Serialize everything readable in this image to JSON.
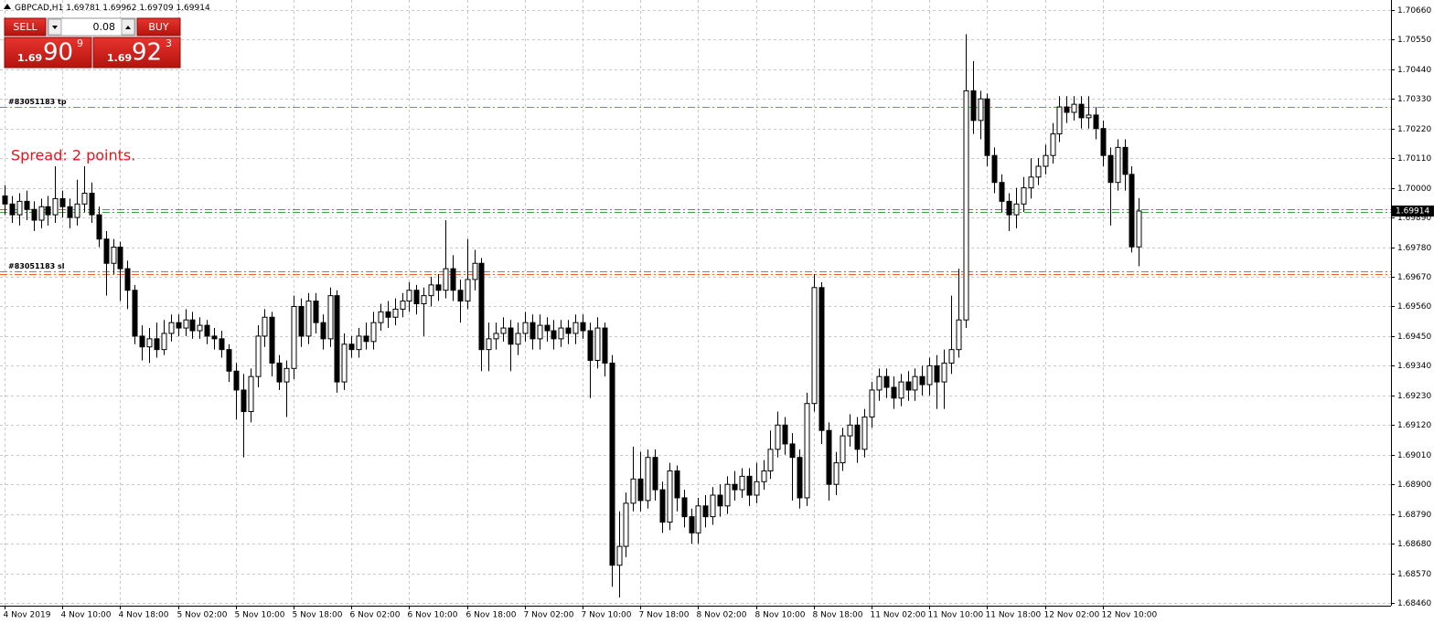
{
  "chart_data": {
    "type": "candlestick",
    "title": "GBPCAD,H1",
    "annotation": "Spread: 2 points.",
    "ylim": [
      1.6845,
      1.7069
    ],
    "yticks": [
      {
        "value": 1.7066,
        "label": "1.70660"
      },
      {
        "value": 1.7055,
        "label": "1.70550"
      },
      {
        "value": 1.7044,
        "label": "1.70440"
      },
      {
        "value": 1.7033,
        "label": "1.70330"
      },
      {
        "value": 1.7022,
        "label": "1.70220"
      },
      {
        "value": 1.7011,
        "label": "1.70110"
      },
      {
        "value": 1.7,
        "label": "1.70000"
      },
      {
        "value": 1.6989,
        "label": "1.69890"
      },
      {
        "value": 1.6978,
        "label": "1.69780"
      },
      {
        "value": 1.6967,
        "label": "1.69670"
      },
      {
        "value": 1.6956,
        "label": "1.69560"
      },
      {
        "value": 1.6945,
        "label": "1.69450"
      },
      {
        "value": 1.6934,
        "label": "1.69340"
      },
      {
        "value": 1.6923,
        "label": "1.69230"
      },
      {
        "value": 1.6912,
        "label": "1.69120"
      },
      {
        "value": 1.6901,
        "label": "1.69010"
      },
      {
        "value": 1.689,
        "label": "1.68900"
      },
      {
        "value": 1.6879,
        "label": "1.68790"
      },
      {
        "value": 1.6868,
        "label": "1.68680"
      },
      {
        "value": 1.6857,
        "label": "1.68570"
      },
      {
        "value": 1.6846,
        "label": "1.68460"
      }
    ],
    "grid": true,
    "up_color": "#ffffff",
    "down_color": "#000000",
    "wick_color": "#000000",
    "categories": [
      "4 Nov 2019",
      null,
      null,
      null,
      null,
      null,
      null,
      null,
      "4 Nov 10:00",
      null,
      null,
      null,
      null,
      null,
      null,
      null,
      "4 Nov 18:00",
      null,
      null,
      null,
      null,
      null,
      null,
      null,
      "5 Nov 02:00",
      null,
      null,
      null,
      null,
      null,
      null,
      null,
      "5 Nov 10:00",
      null,
      null,
      null,
      null,
      null,
      null,
      null,
      "5 Nov 18:00",
      null,
      null,
      null,
      null,
      null,
      null,
      null,
      "6 Nov 02:00",
      null,
      null,
      null,
      null,
      null,
      null,
      null,
      "6 Nov 10:00",
      null,
      null,
      null,
      null,
      null,
      null,
      null,
      "6 Nov 18:00",
      null,
      null,
      null,
      null,
      null,
      null,
      null,
      "7 Nov 02:00",
      null,
      null,
      null,
      null,
      null,
      null,
      null,
      "7 Nov 10:00",
      null,
      null,
      null,
      null,
      null,
      null,
      null,
      "7 Nov 18:00",
      null,
      null,
      null,
      null,
      null,
      null,
      null,
      "8 Nov 02:00",
      null,
      null,
      null,
      null,
      null,
      null,
      null,
      "8 Nov 10:00",
      null,
      null,
      null,
      null,
      null,
      null,
      null,
      "8 Nov 18:00",
      null,
      null,
      null,
      null,
      null,
      null,
      null,
      "11 Nov 02:00",
      null,
      null,
      null,
      null,
      null,
      null,
      null,
      "11 Nov 10:00",
      null,
      null,
      null,
      null,
      null,
      null,
      null,
      "11 Nov 18:00",
      null,
      null,
      null,
      null,
      null,
      null,
      null,
      "12 Nov 02:00",
      null,
      null,
      null,
      null,
      null,
      null,
      null,
      "12 Nov 10:00",
      null,
      null,
      null,
      null,
      null
    ],
    "open": [
      1.6997,
      1.6994,
      1.699,
      1.6995,
      1.6992,
      1.6988,
      1.6993,
      1.699,
      1.6996,
      1.6993,
      1.6989,
      1.6994,
      1.6998,
      1.699,
      1.6981,
      1.6972,
      1.6978,
      1.697,
      1.6962,
      1.6945,
      1.6941,
      1.6944,
      1.694,
      1.6946,
      1.695,
      1.6948,
      1.6951,
      1.6947,
      1.6949,
      1.6945,
      1.6944,
      1.694,
      1.6932,
      1.6925,
      1.6917,
      1.693,
      1.6945,
      1.6952,
      1.6935,
      1.6928,
      1.6933,
      1.6956,
      1.6945,
      1.6958,
      1.695,
      1.6944,
      1.696,
      1.6928,
      1.6942,
      1.694,
      1.6945,
      1.6943,
      1.695,
      1.6954,
      1.6952,
      1.6955,
      1.6958,
      1.6962,
      1.6957,
      1.696,
      1.6964,
      1.6962,
      1.697,
      1.6962,
      1.6958,
      1.6966,
      1.6972,
      1.694,
      1.6944,
      1.6946,
      1.6948,
      1.6942,
      1.6946,
      1.695,
      1.6944,
      1.6949,
      1.6947,
      1.6944,
      1.6948,
      1.6946,
      1.695,
      1.6947,
      1.6936,
      1.6948,
      1.6935,
      1.686,
      1.6867,
      1.6883,
      1.6892,
      1.6884,
      1.69,
      1.6888,
      1.6876,
      1.6895,
      1.6885,
      1.6878,
      1.6872,
      1.6882,
      1.6878,
      1.6886,
      1.6882,
      1.689,
      1.6888,
      1.6893,
      1.6886,
      1.6891,
      1.6895,
      1.6903,
      1.6912,
      1.6905,
      1.69,
      1.6885,
      1.692,
      1.6963,
      1.691,
      1.689,
      1.6898,
      1.6908,
      1.6912,
      1.6903,
      1.6915,
      1.6925,
      1.693,
      1.6926,
      1.6922,
      1.6928,
      1.6925,
      1.693,
      1.6927,
      1.6934,
      1.6928,
      1.6935,
      1.694,
      1.6951,
      1.7036,
      1.7025,
      1.7033,
      1.7012,
      1.7002,
      1.6995,
      1.699,
      1.6994,
      1.7,
      1.7004,
      1.7008,
      1.7012,
      1.702,
      1.703,
      1.7028,
      1.7031,
      1.7026,
      1.7027,
      1.7022,
      1.7012,
      1.7002,
      1.7015,
      1.7005,
      1.69781
    ],
    "high": [
      1.7001,
      1.6997,
      1.6998,
      1.6999,
      1.6995,
      1.6996,
      1.6997,
      1.7008,
      1.6999,
      1.6996,
      1.7003,
      1.7008,
      1.7002,
      1.6993,
      1.6984,
      1.6981,
      1.698,
      1.6973,
      1.6964,
      1.6949,
      1.6948,
      1.695,
      1.6951,
      1.6953,
      1.6953,
      1.6955,
      1.6954,
      1.6952,
      1.6951,
      1.6948,
      1.6947,
      1.6942,
      1.6935,
      1.6931,
      1.6933,
      1.6949,
      1.6955,
      1.6954,
      1.6938,
      1.6936,
      1.696,
      1.6959,
      1.6961,
      1.6961,
      1.6953,
      1.6963,
      1.6962,
      1.6946,
      1.6945,
      1.6948,
      1.695,
      1.6954,
      1.6957,
      1.6958,
      1.6959,
      1.6961,
      1.6965,
      1.6964,
      1.6963,
      1.6967,
      1.6968,
      1.6988,
      1.6975,
      1.6966,
      1.6981,
      1.6977,
      1.6974,
      1.695,
      1.695,
      1.6952,
      1.6951,
      1.695,
      1.6954,
      1.6953,
      1.6953,
      1.6952,
      1.6951,
      1.6951,
      1.6951,
      1.6953,
      1.6953,
      1.695,
      1.6952,
      1.695,
      1.6938,
      1.688,
      1.6887,
      1.6904,
      1.6902,
      1.6903,
      1.6903,
      1.6891,
      1.6898,
      1.6897,
      1.6888,
      1.6881,
      1.6885,
      1.6886,
      1.6889,
      1.689,
      1.6893,
      1.6895,
      1.6896,
      1.6896,
      1.6898,
      1.6899,
      1.691,
      1.6917,
      1.6915,
      1.6909,
      1.6903,
      1.6924,
      1.6968,
      1.6965,
      1.6913,
      1.6902,
      1.6911,
      1.6916,
      1.6915,
      1.6918,
      1.6928,
      1.6933,
      1.6933,
      1.693,
      1.6931,
      1.6932,
      1.6933,
      1.6934,
      1.6937,
      1.6938,
      1.694,
      1.696,
      1.697,
      1.7057,
      1.7047,
      1.7036,
      1.7035,
      1.7015,
      1.7005,
      1.6998,
      1.7,
      1.7004,
      1.7011,
      1.7011,
      1.7016,
      1.7024,
      1.7034,
      1.7034,
      1.7034,
      1.7034,
      1.7034,
      1.703,
      1.7025,
      1.7015,
      1.7018,
      1.7018,
      1.7008,
      1.69962
    ],
    "low": [
      1.699,
      1.6987,
      1.6986,
      1.6988,
      1.6984,
      1.6985,
      1.6986,
      1.6987,
      1.6989,
      1.6985,
      1.6986,
      1.6991,
      1.6987,
      1.6978,
      1.696,
      1.6968,
      1.6958,
      1.6955,
      1.6942,
      1.6936,
      1.6935,
      1.6937,
      1.6938,
      1.6943,
      1.6945,
      1.6945,
      1.6944,
      1.6944,
      1.6942,
      1.694,
      1.6937,
      1.6928,
      1.6914,
      1.69,
      1.6913,
      1.6926,
      1.6941,
      1.693,
      1.6925,
      1.6915,
      1.6929,
      1.6941,
      1.6942,
      1.6946,
      1.694,
      1.6941,
      1.6924,
      1.6925,
      1.6937,
      1.6937,
      1.694,
      1.694,
      1.6947,
      1.6948,
      1.6949,
      1.6952,
      1.6954,
      1.6953,
      1.6945,
      1.6956,
      1.6958,
      1.6959,
      1.6958,
      1.695,
      1.6955,
      1.6962,
      1.6932,
      1.6932,
      1.694,
      1.6943,
      1.6932,
      1.6938,
      1.6943,
      1.694,
      1.694,
      1.6943,
      1.694,
      1.6941,
      1.6942,
      1.6942,
      1.6944,
      1.6922,
      1.6933,
      1.693,
      1.6852,
      1.6848,
      1.6863,
      1.688,
      1.688,
      1.6881,
      1.6884,
      1.6872,
      1.6873,
      1.688,
      1.6874,
      1.6868,
      1.6868,
      1.6874,
      1.6875,
      1.6878,
      1.6879,
      1.6884,
      1.6885,
      1.6882,
      1.6883,
      1.6888,
      1.6892,
      1.69,
      1.6901,
      1.6884,
      1.6881,
      1.6882,
      1.6917,
      1.6905,
      1.6884,
      1.6886,
      1.6895,
      1.6904,
      1.6898,
      1.69,
      1.6911,
      1.6921,
      1.6922,
      1.6918,
      1.6919,
      1.6921,
      1.6921,
      1.6923,
      1.6923,
      1.6918,
      1.6918,
      1.6931,
      1.6937,
      1.6948,
      1.702,
      1.7018,
      1.7008,
      1.6998,
      1.6991,
      1.6984,
      1.6985,
      1.6991,
      1.6996,
      1.7001,
      1.7005,
      1.7009,
      1.7017,
      1.7024,
      1.7025,
      1.7022,
      1.7022,
      1.7018,
      1.7008,
      1.6986,
      1.6999,
      1.6999,
      1.6976,
      1.69709
    ],
    "close": [
      1.6994,
      1.699,
      1.6995,
      1.6992,
      1.6988,
      1.6993,
      1.699,
      1.6996,
      1.6993,
      1.6989,
      1.6994,
      1.6998,
      1.699,
      1.6981,
      1.6972,
      1.6978,
      1.697,
      1.6962,
      1.6945,
      1.6941,
      1.6944,
      1.694,
      1.6946,
      1.695,
      1.6948,
      1.6951,
      1.6947,
      1.6949,
      1.6945,
      1.6944,
      1.694,
      1.6932,
      1.6925,
      1.6917,
      1.693,
      1.6945,
      1.6952,
      1.6935,
      1.6928,
      1.6933,
      1.6956,
      1.6945,
      1.6958,
      1.695,
      1.6944,
      1.696,
      1.6928,
      1.6942,
      1.694,
      1.6945,
      1.6943,
      1.695,
      1.6954,
      1.6952,
      1.6955,
      1.6958,
      1.6962,
      1.6957,
      1.696,
      1.6964,
      1.6962,
      1.697,
      1.6962,
      1.6958,
      1.6966,
      1.6972,
      1.694,
      1.6944,
      1.6946,
      1.6948,
      1.6942,
      1.6946,
      1.695,
      1.6944,
      1.6949,
      1.6947,
      1.6944,
      1.6948,
      1.6946,
      1.695,
      1.6947,
      1.6936,
      1.6948,
      1.6935,
      1.686,
      1.6867,
      1.6883,
      1.6892,
      1.6884,
      1.69,
      1.6888,
      1.6876,
      1.6895,
      1.6885,
      1.6878,
      1.6872,
      1.6882,
      1.6878,
      1.6886,
      1.6882,
      1.689,
      1.6888,
      1.6893,
      1.6886,
      1.6891,
      1.6895,
      1.6903,
      1.6912,
      1.6905,
      1.69,
      1.6885,
      1.692,
      1.6963,
      1.691,
      1.689,
      1.6898,
      1.6908,
      1.6912,
      1.6903,
      1.6915,
      1.6925,
      1.693,
      1.6926,
      1.6922,
      1.6928,
      1.6925,
      1.693,
      1.6927,
      1.6934,
      1.6928,
      1.6935,
      1.694,
      1.6951,
      1.7036,
      1.7025,
      1.7033,
      1.7012,
      1.7002,
      1.6995,
      1.699,
      1.6994,
      1.7,
      1.7004,
      1.7008,
      1.7012,
      1.702,
      1.703,
      1.7028,
      1.7031,
      1.7026,
      1.7027,
      1.7022,
      1.7012,
      1.7002,
      1.7015,
      1.7005,
      1.69781,
      1.69914
    ],
    "levels": [
      {
        "label": "#83051183 tp",
        "value": 1.703,
        "color": "#ff5a1f"
      },
      {
        "label": "#83051183 sl",
        "value": 1.6969,
        "color": "#ff5a1f"
      },
      {
        "value": 1.6968,
        "color": "#ff5a1f"
      },
      {
        "value": 1.6992,
        "color": "#3aa63a"
      },
      {
        "value": 1.6991,
        "color": "#3aa63a"
      }
    ]
  },
  "trade_panel": {
    "sell": "SELL",
    "lots": "0.08",
    "buy": "BUY",
    "bid": {
      "big": "1.69",
      "pips": "90",
      "point": "9"
    },
    "ask": {
      "big": "1.69",
      "pips": "92",
      "point": "3"
    }
  }
}
